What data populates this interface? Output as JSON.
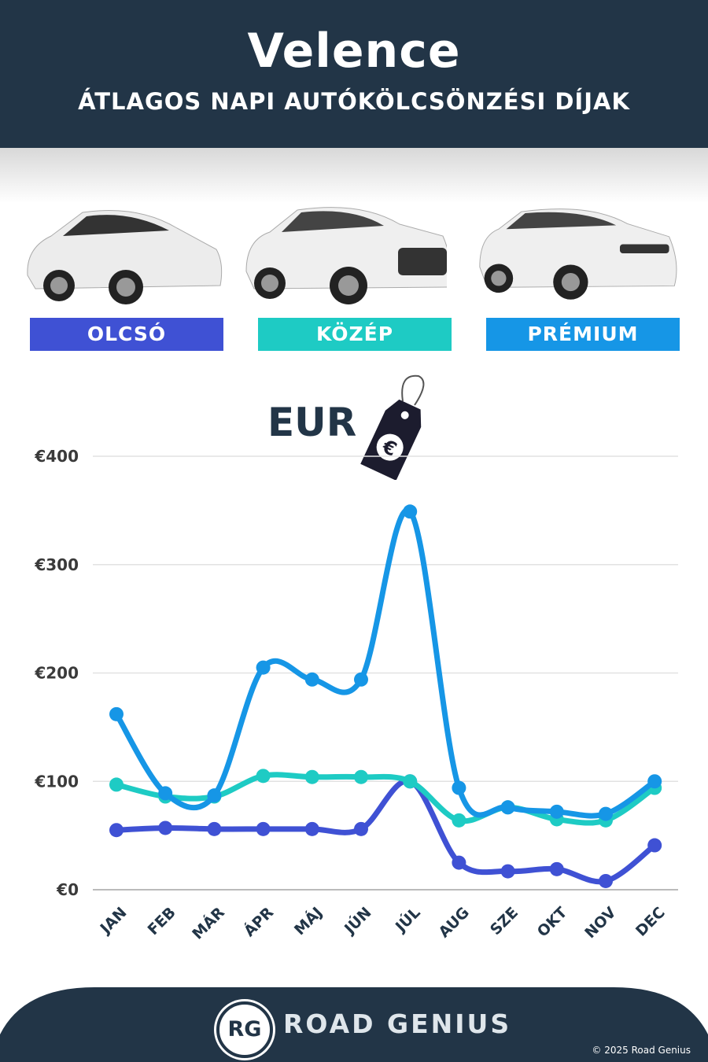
{
  "header": {
    "title": "Velence",
    "subtitle": "ÁTLAGOS NAPI AUTÓKÖLCSÖNZÉSI DÍJAK"
  },
  "categories": [
    {
      "label": "OLCSÓ",
      "color": "#3f51d4"
    },
    {
      "label": "KÖZÉP",
      "color": "#1ecbc4"
    },
    {
      "label": "PRÉMIUM",
      "color": "#1696e6"
    }
  ],
  "currency": {
    "label": "EUR",
    "icon": "euro-price-tag-icon"
  },
  "chart_data": {
    "type": "line",
    "categories": [
      "JAN",
      "FEB",
      "MÁR",
      "ÁPR",
      "MÁJ",
      "JÚN",
      "JÚL",
      "AUG",
      "SZE",
      "OKT",
      "NOV",
      "DEC"
    ],
    "ylim": [
      0,
      400
    ],
    "yticks": [
      0,
      100,
      200,
      300,
      400
    ],
    "ytick_labels": [
      "€0",
      "€100",
      "€200",
      "€300",
      "€400"
    ],
    "grid": true,
    "series": [
      {
        "name": "OLCSÓ",
        "color": "#3f51d4",
        "values": [
          55,
          57,
          56,
          56,
          56,
          56,
          100,
          25,
          17,
          19,
          8,
          41
        ]
      },
      {
        "name": "KÖZÉP",
        "color": "#1ecbc4",
        "values": [
          97,
          86,
          86,
          105,
          104,
          104,
          100,
          64,
          76,
          65,
          64,
          94
        ]
      },
      {
        "name": "PRÉMIUM",
        "color": "#1696e6",
        "values": [
          162,
          89,
          87,
          205,
          194,
          194,
          349,
          94,
          76,
          72,
          70,
          100
        ]
      }
    ]
  },
  "footer": {
    "brand": "ROAD GENIUS",
    "logo": "RG",
    "copyright": "© 2025 Road Genius"
  }
}
